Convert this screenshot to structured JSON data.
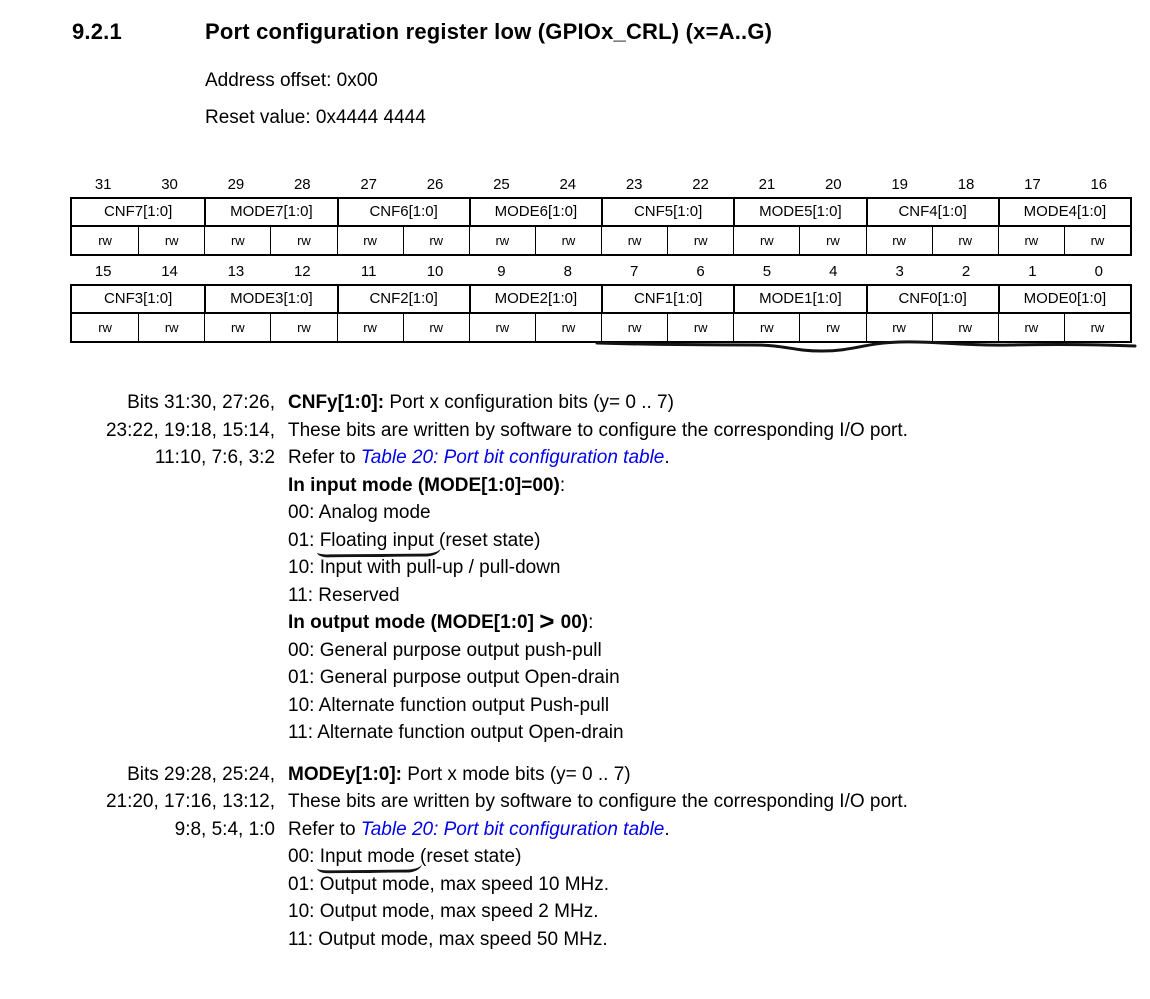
{
  "colors": {
    "link_blue": "#0000ee",
    "text": "#000000",
    "background": "#ffffff"
  },
  "page": {
    "section_number": "9.2.1",
    "title": "Port configuration register low (GPIOx_CRL) (x=A..G)",
    "address_offset": "Address offset: 0x00",
    "reset_value": "Reset value: 0x4444 4444"
  },
  "register_tables": [
    {
      "name": "bits-31-16",
      "bit_numbers": [
        "31",
        "30",
        "29",
        "28",
        "27",
        "26",
        "25",
        "24",
        "23",
        "22",
        "21",
        "20",
        "19",
        "18",
        "17",
        "16"
      ],
      "fields": [
        "CNF7[1:0]",
        "MODE7[1:0]",
        "CNF6[1:0]",
        "MODE6[1:0]",
        "CNF5[1:0]",
        "MODE5[1:0]",
        "CNF4[1:0]",
        "MODE4[1:0]"
      ],
      "access": [
        "rw",
        "rw",
        "rw",
        "rw",
        "rw",
        "rw",
        "rw",
        "rw",
        "rw",
        "rw",
        "rw",
        "rw",
        "rw",
        "rw",
        "rw",
        "rw"
      ]
    },
    {
      "name": "bits-15-0",
      "bit_numbers": [
        "15",
        "14",
        "13",
        "12",
        "11",
        "10",
        "9",
        "8",
        "7",
        "6",
        "5",
        "4",
        "3",
        "2",
        "1",
        "0"
      ],
      "fields": [
        "CNF3[1:0]",
        "MODE3[1:0]",
        "CNF2[1:0]",
        "MODE2[1:0]",
        "CNF1[1:0]",
        "MODE1[1:0]",
        "CNF0[1:0]",
        "MODE0[1:0]"
      ],
      "access": [
        "rw",
        "rw",
        "rw",
        "rw",
        "rw",
        "rw",
        "rw",
        "rw",
        "rw",
        "rw",
        "rw",
        "rw",
        "rw",
        "rw",
        "rw",
        "rw"
      ]
    }
  ],
  "annotations": {
    "squiggle_under_low_table": true,
    "hand_underlined_phrases": [
      "Floating input",
      "Input mode"
    ]
  },
  "field_descriptions": [
    {
      "id": "cnf",
      "bits_label_lines": [
        "Bits 31:30, 27:26,",
        "23:22, 19:18, 15:14,",
        "11:10, 7:6, 3:2"
      ],
      "lines": [
        {
          "segments": [
            {
              "text": "CNFy[1:0]:",
              "bold": true
            },
            {
              "text": " Port x configuration bits (y= 0 .. 7)"
            }
          ]
        },
        {
          "segments": [
            {
              "text": "These bits are written by software to configure the corresponding I/O port."
            }
          ]
        },
        {
          "segments": [
            {
              "text": "Refer to "
            },
            {
              "text": "Table 20: Port bit configuration table",
              "link": true
            },
            {
              "text": "."
            }
          ]
        },
        {
          "segments": [
            {
              "text": "In input mode (MODE[1:0]=00)",
              "bold": true
            },
            {
              "text": ":"
            }
          ]
        },
        {
          "segments": [
            {
              "text": "00: Analog mode"
            }
          ]
        },
        {
          "segments": [
            {
              "text": "01: "
            },
            {
              "text": "Floating input",
              "underline": true
            },
            {
              "text": " (reset state)"
            }
          ]
        },
        {
          "segments": [
            {
              "text": "10: Input with pull-up / pull-down"
            }
          ]
        },
        {
          "segments": [
            {
              "text": "11: Reserved"
            }
          ]
        },
        {
          "segments": [
            {
              "text": "In output mode (MODE[1:0] ",
              "bold": true
            },
            {
              "text": ">",
              "bold": true,
              "big": true
            },
            {
              "text": " 00)",
              "bold": true
            },
            {
              "text": ":"
            }
          ]
        },
        {
          "segments": [
            {
              "text": "00: General purpose output push-pull"
            }
          ]
        },
        {
          "segments": [
            {
              "text": "01: General purpose output Open-drain"
            }
          ]
        },
        {
          "segments": [
            {
              "text": "10: Alternate function output Push-pull"
            }
          ]
        },
        {
          "segments": [
            {
              "text": "11: Alternate function output Open-drain"
            }
          ]
        }
      ]
    },
    {
      "id": "mode",
      "bits_label_lines": [
        "Bits 29:28, 25:24,",
        "21:20, 17:16, 13:12,",
        "9:8, 5:4, 1:0"
      ],
      "lines": [
        {
          "segments": [
            {
              "text": "MODEy[1:0]:",
              "bold": true
            },
            {
              "text": " Port x mode bits (y= 0 .. 7)"
            }
          ]
        },
        {
          "segments": [
            {
              "text": "These bits are written by software to configure the corresponding I/O port."
            }
          ]
        },
        {
          "segments": [
            {
              "text": "Refer to "
            },
            {
              "text": "Table 20: Port bit configuration table",
              "link": true
            },
            {
              "text": "."
            }
          ]
        },
        {
          "segments": [
            {
              "text": "00: "
            },
            {
              "text": "Input mode",
              "underline": true
            },
            {
              "text": " (reset state)"
            }
          ]
        },
        {
          "segments": [
            {
              "text": "01: Output mode, max speed 10 MHz."
            }
          ]
        },
        {
          "segments": [
            {
              "text": "10: Output mode, max speed 2 MHz."
            }
          ]
        },
        {
          "segments": [
            {
              "text": "11: Output mode, max speed 50 MHz."
            }
          ]
        }
      ]
    }
  ]
}
